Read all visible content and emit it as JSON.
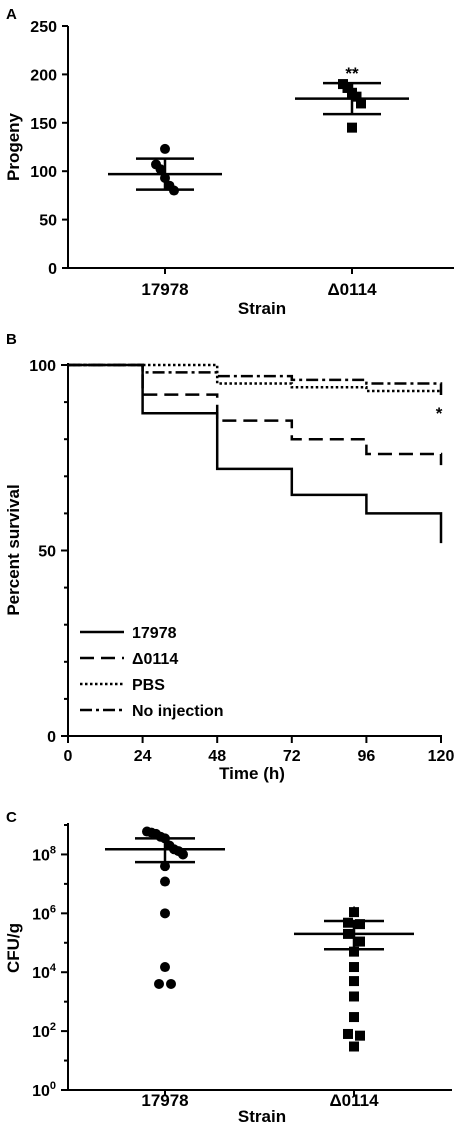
{
  "chart_data": [
    {
      "panel": "A",
      "type": "scatter",
      "ylabel": "Progeny",
      "xlabel": "Strain",
      "ylim": [
        0,
        250
      ],
      "yticks": [
        0,
        50,
        100,
        150,
        200,
        250
      ],
      "categories": [
        "17978",
        "Δ0114"
      ],
      "groups": [
        {
          "category": "17978",
          "marker": "circle",
          "mean": 97,
          "sd": 16,
          "values": [
            123,
            107,
            102,
            93,
            85,
            80
          ]
        },
        {
          "category": "Δ0114",
          "marker": "square",
          "mean": 175,
          "sd": 16,
          "values": [
            190,
            186,
            181,
            177,
            170,
            145
          ]
        }
      ],
      "significance": [
        {
          "category": "Δ0114",
          "text": "**"
        }
      ]
    },
    {
      "panel": "B",
      "type": "line",
      "ylabel": "Percent  survival",
      "xlabel": "Time (h)",
      "xlim": [
        0,
        120
      ],
      "ylim": [
        0,
        100
      ],
      "xticks": [
        0,
        24,
        48,
        72,
        96,
        120
      ],
      "yticks": [
        0,
        50,
        100
      ],
      "legend_position": "bottom-left",
      "series": [
        {
          "name": "17978",
          "style": "solid",
          "x": [
            0,
            24,
            48,
            72,
            96,
            120
          ],
          "y": [
            100,
            87,
            72,
            65,
            60,
            52
          ]
        },
        {
          "name": "Δ0114",
          "style": "dashed",
          "x": [
            0,
            24,
            48,
            72,
            96,
            120
          ],
          "y": [
            100,
            92,
            85,
            80,
            76,
            73
          ]
        },
        {
          "name": "PBS",
          "style": "dotted",
          "x": [
            0,
            24,
            48,
            72,
            96,
            120
          ],
          "y": [
            100,
            100,
            95,
            94,
            93,
            93
          ]
        },
        {
          "name": "No injection",
          "style": "dashdot",
          "x": [
            0,
            24,
            48,
            72,
            96,
            120
          ],
          "y": [
            100,
            98,
            97,
            96,
            95,
            91
          ]
        }
      ],
      "significance": [
        {
          "x": 120,
          "y": 83,
          "text": "*"
        }
      ]
    },
    {
      "panel": "C",
      "type": "scatter",
      "ylabel": "CFU/g",
      "xlabel": "Strain",
      "yscale": "log",
      "ylim": [
        1,
        1000000000
      ],
      "yticks": [
        1,
        100,
        10000,
        1000000,
        100000000
      ],
      "ytick_labels": [
        "10^0",
        "10^2",
        "10^4",
        "10^6",
        "10^8"
      ],
      "categories": [
        "17978",
        "Δ0114"
      ],
      "groups": [
        {
          "category": "17978",
          "marker": "circle",
          "mean": 150000000,
          "upper": 350000000,
          "lower": 55000000,
          "values": [
            600000000,
            550000000,
            500000000,
            400000000,
            350000000,
            200000000,
            150000000,
            130000000,
            100000000,
            40000000,
            12000000,
            1000000,
            15000,
            4000,
            4000
          ]
        },
        {
          "category": "Δ0114",
          "marker": "square",
          "mean": 200000,
          "upper": 550000,
          "lower": 60000,
          "values": [
            1100000,
            480000,
            430000,
            200000,
            110000,
            50000,
            15000,
            5000,
            1500,
            300,
            80,
            70,
            30
          ]
        }
      ],
      "significance": [
        {
          "category": "Δ0114",
          "text": "*"
        }
      ]
    }
  ]
}
